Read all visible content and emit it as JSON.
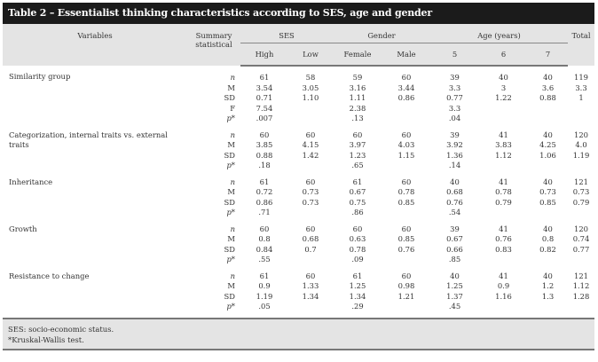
{
  "title": "Table 2 – Essentialist thinking characteristics according to SES, age and gender",
  "header": {
    "variables": "Variables",
    "summary": "Summary statistical",
    "ses": "SES",
    "gender": "Gender",
    "age": "Age (years)",
    "total": "Total",
    "sub": [
      "High",
      "Low",
      "Female",
      "Male",
      "5",
      "6",
      "7"
    ]
  },
  "groups": [
    {
      "label": "Similarity group",
      "rows": [
        {
          "stat": "n",
          "values": [
            "61",
            "58",
            "59",
            "60",
            "39",
            "40",
            "40",
            "119"
          ]
        },
        {
          "stat": "M",
          "values": [
            "3.54",
            "3.05",
            "3.16",
            "3.44",
            "3.3",
            "3",
            "3.6",
            "3.3"
          ]
        },
        {
          "stat": "SD",
          "values": [
            "0.71",
            "1.10",
            "1.11",
            "0.86",
            "0.77",
            "1.22",
            "0.88",
            "1"
          ]
        },
        {
          "stat": "F",
          "values": [
            "7.54",
            "",
            "2.38",
            "",
            "3.3",
            "",
            "",
            ""
          ]
        },
        {
          "stat": "p*",
          "values": [
            ".007",
            "",
            ".13",
            "",
            ".04",
            "",
            "",
            ""
          ]
        }
      ]
    },
    {
      "label": "Categorization, internal traits vs. external traits",
      "rows": [
        {
          "stat": "n",
          "values": [
            "60",
            "60",
            "60",
            "60",
            "39",
            "41",
            "40",
            "120"
          ]
        },
        {
          "stat": "M",
          "values": [
            "3.85",
            "4.15",
            "3.97",
            "4.03",
            "3.92",
            "3.83",
            "4.25",
            "4.0"
          ]
        },
        {
          "stat": "SD",
          "values": [
            "0.88",
            "1.42",
            "1.23",
            "1.15",
            "1.36",
            "1.12",
            "1.06",
            "1.19"
          ]
        },
        {
          "stat": "p*",
          "values": [
            ".18",
            "",
            ".65",
            "",
            ".14",
            "",
            "",
            ""
          ]
        }
      ]
    },
    {
      "label": "Inheritance",
      "rows": [
        {
          "stat": "n",
          "values": [
            "61",
            "60",
            "61",
            "60",
            "40",
            "41",
            "40",
            "121"
          ]
        },
        {
          "stat": "M",
          "values": [
            "0.72",
            "0.73",
            "0.67",
            "0.78",
            "0.68",
            "0.78",
            "0.73",
            "0.73"
          ]
        },
        {
          "stat": "SD",
          "values": [
            "0.86",
            "0.73",
            "0.75",
            "0.85",
            "0.76",
            "0.79",
            "0.85",
            "0.79"
          ]
        },
        {
          "stat": "p*",
          "values": [
            ".71",
            "",
            ".86",
            "",
            ".54",
            "",
            "",
            ""
          ]
        }
      ]
    },
    {
      "label": "Growth",
      "rows": [
        {
          "stat": "n",
          "values": [
            "60",
            "60",
            "60",
            "60",
            "39",
            "41",
            "40",
            "120"
          ]
        },
        {
          "stat": "M",
          "values": [
            "0.8",
            "0.68",
            "0.63",
            "0.85",
            "0.67",
            "0.76",
            "0.8",
            "0.74"
          ]
        },
        {
          "stat": "SD",
          "values": [
            "0.84",
            "0.7",
            "0.78",
            "0.76",
            "0.66",
            "0.83",
            "0.82",
            "0.77"
          ]
        },
        {
          "stat": "p*",
          "values": [
            ".55",
            "",
            ".09",
            "",
            ".85",
            "",
            "",
            ""
          ]
        }
      ]
    },
    {
      "label": "Resistance to change",
      "rows": [
        {
          "stat": "n",
          "values": [
            "61",
            "60",
            "61",
            "60",
            "40",
            "41",
            "40",
            "121"
          ]
        },
        {
          "stat": "M",
          "values": [
            "0.9",
            "1.33",
            "1.25",
            "0.98",
            "1.25",
            "0.9",
            "1.2",
            "1.12"
          ]
        },
        {
          "stat": "SD",
          "values": [
            "1.19",
            "1.34",
            "1.34",
            "1.21",
            "1.37",
            "1.16",
            "1.3",
            "1.28"
          ]
        },
        {
          "stat": "p*",
          "values": [
            ".05",
            "",
            ".29",
            "",
            ".45",
            "",
            "",
            ""
          ]
        }
      ]
    }
  ],
  "footnotes": [
    "SES: socio-economic status.",
    "*Kruskal-Wallis test."
  ]
}
